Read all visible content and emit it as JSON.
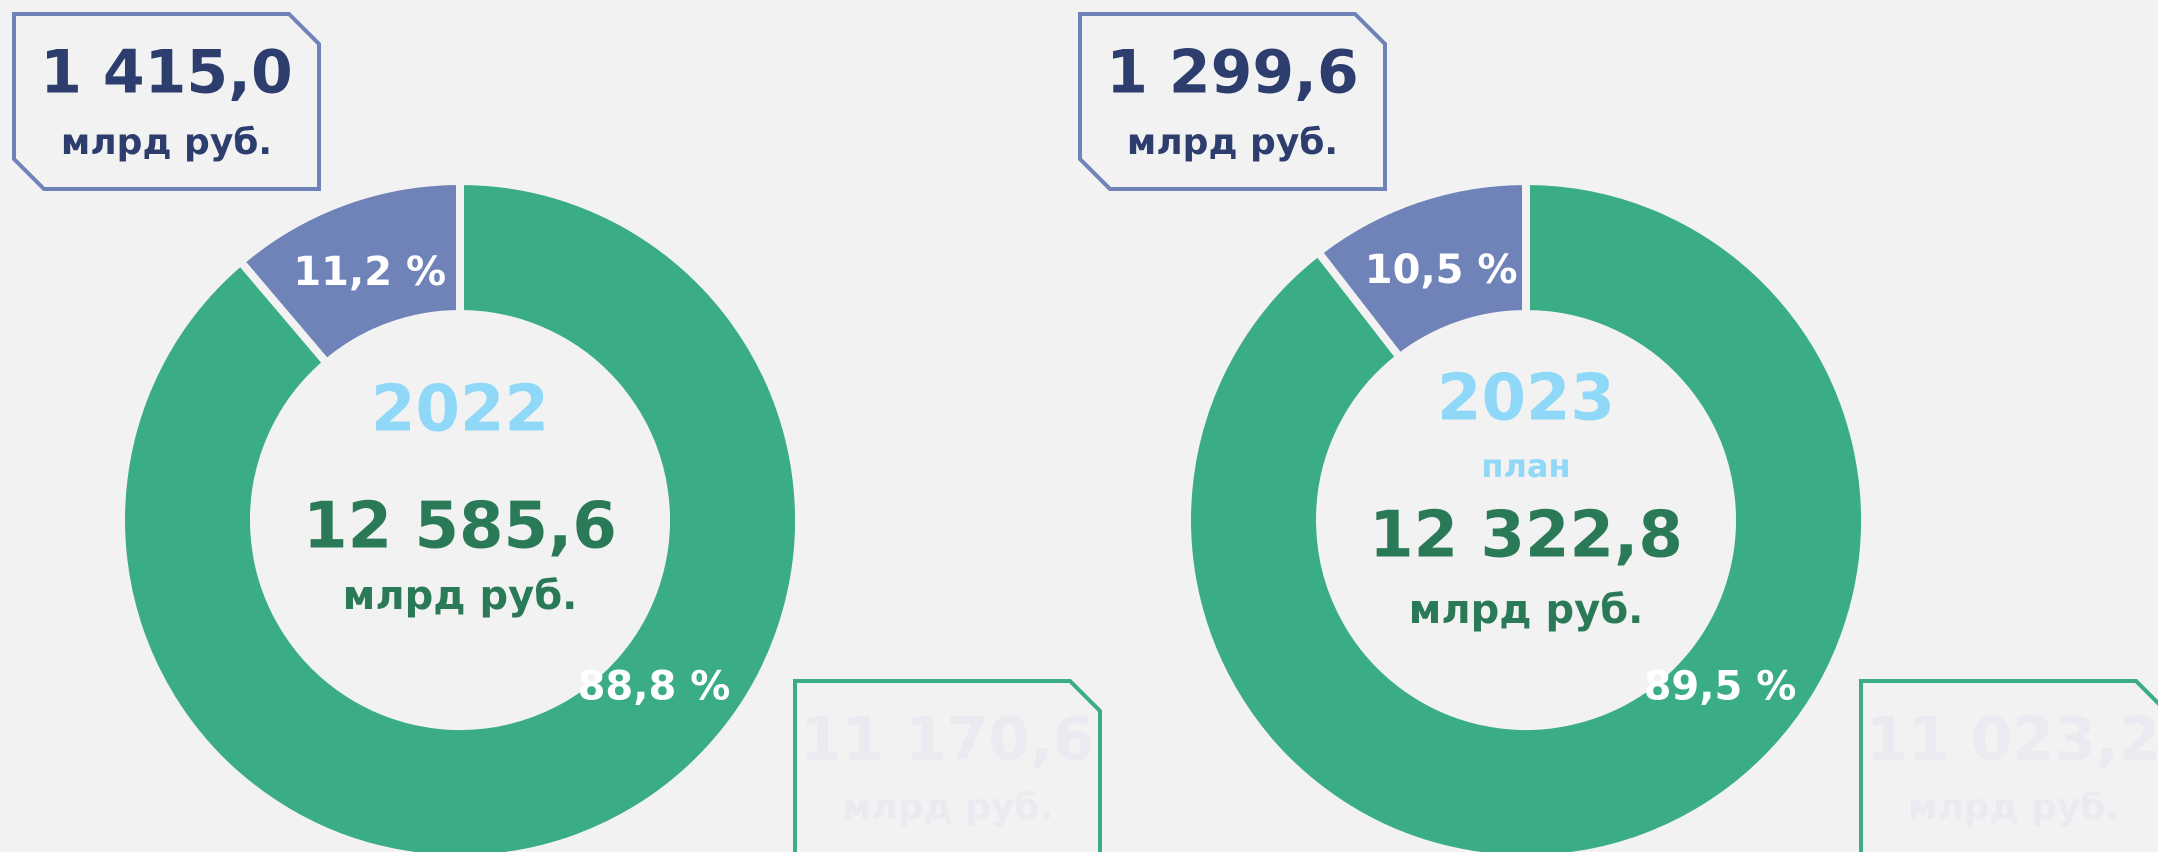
{
  "chart_data": [
    {
      "type": "pie",
      "donut": true,
      "values": [
        88.8,
        11.2
      ],
      "value_labels": [
        "88,8 %",
        "11,2 %"
      ],
      "colors": [
        "#3aad85",
        "#6f83b8"
      ],
      "center": {
        "title": "2022",
        "value": "12 585,6",
        "unit": "млрд руб."
      },
      "callouts": [
        {
          "value": "11 170,6",
          "unit": "млрд руб."
        },
        {
          "value": "1 415,0",
          "unit": "млрд руб."
        }
      ]
    },
    {
      "type": "pie",
      "donut": true,
      "values": [
        89.5,
        10.5
      ],
      "value_labels": [
        "89,5 %",
        "10,5 %"
      ],
      "colors": [
        "#3aad85",
        "#6f83b8"
      ],
      "center": {
        "title": "2023",
        "subtitle": "план",
        "value": "12 322,8",
        "unit": "млрд руб."
      },
      "callouts": [
        {
          "value": "11 023,2",
          "unit": "млрд руб."
        },
        {
          "value": "1 299,6",
          "unit": "млрд руб."
        }
      ]
    }
  ]
}
